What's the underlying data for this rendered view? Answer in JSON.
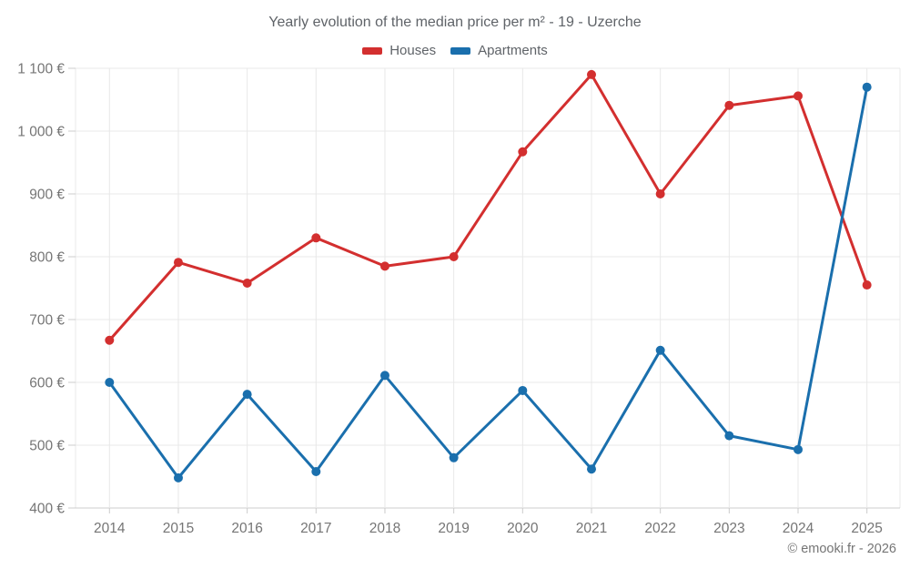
{
  "chart_data": {
    "type": "line",
    "title": "Yearly evolution of the median price per m² - 19 - Uzerche",
    "categories": [
      "2014",
      "2015",
      "2016",
      "2017",
      "2018",
      "2019",
      "2020",
      "2021",
      "2022",
      "2023",
      "2024",
      "2025"
    ],
    "series": [
      {
        "name": "Houses",
        "color": "#d32f2f",
        "values": [
          667,
          791,
          758,
          830,
          785,
          800,
          967,
          1090,
          900,
          1041,
          1056,
          755
        ]
      },
      {
        "name": "Apartments",
        "color": "#1a6fad",
        "values": [
          600,
          448,
          581,
          458,
          611,
          480,
          587,
          462,
          651,
          515,
          493,
          1070
        ]
      }
    ],
    "xlabel": "",
    "ylabel": "",
    "ylim": [
      400,
      1100
    ],
    "y_tick_step": 100,
    "y_tick_labels": [
      "400 €",
      "500 €",
      "600 €",
      "700 €",
      "800 €",
      "900 €",
      "1 000 €",
      "1 100 €"
    ],
    "grid": true,
    "legend_position": "top",
    "footer": "© emooki.fr - 2026",
    "colors": {
      "gridline": "#e8e8e8",
      "axis": "#cccccc",
      "tick_label": "#757575",
      "title_text": "#5f6368"
    }
  }
}
